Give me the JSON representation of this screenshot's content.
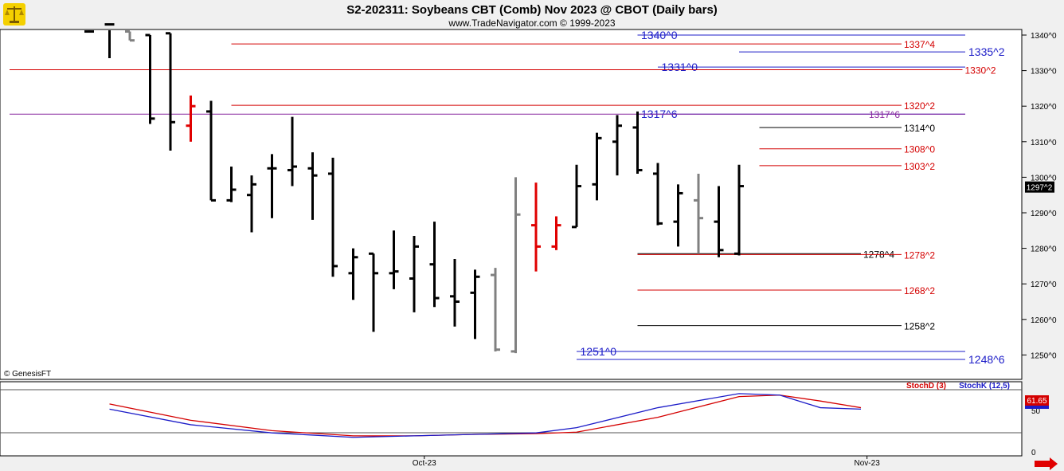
{
  "header": {
    "title": "S2-202311:  Soybeans CBT (Comb) Nov 2023 @ CBOT  (Daily bars)",
    "subtitle": "www.TradeNavigator.com © 1999-2023"
  },
  "copyright": "© GenesisFT",
  "colors": {
    "up_bar": "#000000",
    "inside_bar": "#808080",
    "reversal_bar": "#e00000",
    "red_level": "#d40000",
    "blue_level": "#1c1cc8",
    "black_level": "#000000",
    "stoch_d": "#d40000",
    "stoch_k": "#1c1cc8",
    "background": "#ffffff",
    "frame": "#f0f0f0"
  },
  "chart_data": [
    {
      "type": "bar",
      "subtype": "ohlc",
      "title": "S2-202311:  Soybeans CBT (Comb) Nov 2023 @ CBOT  (Daily bars)",
      "ylim": [
        1245,
        1343
      ],
      "y_ticks": [
        "1340^0",
        "1330^0",
        "1320^0",
        "1310^0",
        "1300^0",
        "1290^0",
        "1280^0",
        "1270^0",
        "1260^0",
        "1250^0"
      ],
      "y_tick_values": [
        1340,
        1330,
        1320,
        1310,
        1300,
        1290,
        1280,
        1270,
        1260,
        1250
      ],
      "x_ticks": [
        "Oct-23",
        "Nov-23"
      ],
      "x_tick_index": [
        16.5,
        38.3
      ],
      "last_price_label": "1297^2",
      "last_price": 1297.25,
      "bars": [
        {
          "o": 1341,
          "h": 1342,
          "l": 1341,
          "c": 1341,
          "k": "up"
        },
        {
          "o": 1343,
          "h": 1343,
          "l": 1333.5,
          "c": 1343,
          "k": "up"
        },
        {
          "o": 1341,
          "h": 1341,
          "l": 1338.5,
          "c": 1338.5,
          "k": "inside"
        },
        {
          "o": 1340,
          "h": 1340,
          "l": 1315,
          "c": 1316.5,
          "k": "up"
        },
        {
          "o": 1340.5,
          "h": 1340.5,
          "l": 1307.5,
          "c": 1315.5,
          "k": "up"
        },
        {
          "o": 1314.5,
          "h": 1323,
          "l": 1310,
          "c": 1320,
          "k": "reversal"
        },
        {
          "o": 1318.5,
          "h": 1321.5,
          "l": 1293.5,
          "c": 1293.5,
          "k": "up"
        },
        {
          "o": 1293.5,
          "h": 1303,
          "l": 1293,
          "c": 1296.5,
          "k": "up"
        },
        {
          "o": 1295,
          "h": 1300.5,
          "l": 1284.5,
          "c": 1298,
          "k": "up"
        },
        {
          "o": 1302.5,
          "h": 1306.5,
          "l": 1288.5,
          "c": 1302.5,
          "k": "up"
        },
        {
          "o": 1302,
          "h": 1317,
          "l": 1297.5,
          "c": 1303,
          "k": "up"
        },
        {
          "o": 1302.5,
          "h": 1307,
          "l": 1288,
          "c": 1300.5,
          "k": "up"
        },
        {
          "o": 1301,
          "h": 1305.5,
          "l": 1272,
          "c": 1275,
          "k": "up"
        },
        {
          "o": 1273,
          "h": 1280,
          "l": 1265.5,
          "c": 1277.5,
          "k": "up"
        },
        {
          "o": 1278.5,
          "h": 1278.5,
          "l": 1256.5,
          "c": 1273,
          "k": "up"
        },
        {
          "o": 1273,
          "h": 1285,
          "l": 1268.5,
          "c": 1273.5,
          "k": "up"
        },
        {
          "o": 1271.5,
          "h": 1283.5,
          "l": 1262,
          "c": 1280.5,
          "k": "up"
        },
        {
          "o": 1275.5,
          "h": 1287.5,
          "l": 1263.5,
          "c": 1266,
          "k": "up"
        },
        {
          "o": 1266.5,
          "h": 1277,
          "l": 1258,
          "c": 1265,
          "k": "up"
        },
        {
          "o": 1267.5,
          "h": 1274,
          "l": 1254.5,
          "c": 1272,
          "k": "up"
        },
        {
          "o": 1272.5,
          "h": 1274.5,
          "l": 1251,
          "c": 1251.5,
          "k": "inside"
        },
        {
          "o": 1251,
          "h": 1300,
          "l": 1250.5,
          "c": 1289.5,
          "k": "inside"
        },
        {
          "o": 1286.5,
          "h": 1298.5,
          "l": 1273.5,
          "c": 1280.5,
          "k": "reversal"
        },
        {
          "o": 1280.5,
          "h": 1289,
          "l": 1279.5,
          "c": 1286.5,
          "k": "reversal"
        },
        {
          "o": 1286,
          "h": 1303.5,
          "l": 1286,
          "c": 1297.5,
          "k": "up"
        },
        {
          "o": 1298,
          "h": 1312.5,
          "l": 1293.5,
          "c": 1311,
          "k": "up"
        },
        {
          "o": 1310,
          "h": 1317.5,
          "l": 1300.5,
          "c": 1314.5,
          "k": "up"
        },
        {
          "o": 1314,
          "h": 1318.5,
          "l": 1301,
          "c": 1302,
          "k": "up"
        },
        {
          "o": 1301,
          "h": 1304,
          "l": 1286.5,
          "c": 1287,
          "k": "up"
        },
        {
          "o": 1287.5,
          "h": 1298,
          "l": 1280.5,
          "c": 1295.5,
          "k": "up"
        },
        {
          "o": 1293.5,
          "h": 1301,
          "l": 1278.5,
          "c": 1288.5,
          "k": "inside"
        },
        {
          "o": 1287.5,
          "h": 1297.5,
          "l": 1277.5,
          "c": 1279.5,
          "k": "up"
        },
        {
          "o": 1278.5,
          "h": 1303.5,
          "l": 1278,
          "c": 1297.5,
          "k": "up"
        }
      ],
      "levels": [
        {
          "label": "1340^0",
          "value": 1340,
          "color": "blue",
          "x0": 27,
          "x1": 48,
          "label_pos": "start"
        },
        {
          "label": "1337^4",
          "value": 1337.5,
          "color": "red",
          "x0": 7,
          "x1": 40,
          "label_pos": "end"
        },
        {
          "label": "1335^2",
          "value": 1335.25,
          "color": "blue",
          "x0": 32,
          "x1": 48,
          "label_pos": "end-far"
        },
        {
          "label": "1331^0",
          "value": 1331,
          "color": "blue",
          "x0": 28,
          "x1": 48,
          "label_pos": "start"
        },
        {
          "label": "1330^2",
          "value": 1330.25,
          "color": "red",
          "x0": -7,
          "x1": 43,
          "label_pos": "end"
        },
        {
          "label": "1320^2",
          "value": 1320.25,
          "color": "red",
          "x0": 7,
          "x1": 40,
          "label_pos": "end"
        },
        {
          "label": "1317^6",
          "value": 1317.75,
          "color": "blue",
          "x0": 27,
          "x1": 48,
          "label_pos": "start"
        },
        {
          "label": "1317^6",
          "value": 1317.75,
          "color": "purple",
          "x0": -7,
          "x1": 48,
          "label_pos": "end-right"
        },
        {
          "label": "1314^0",
          "value": 1314,
          "color": "black",
          "x0": 33,
          "x1": 40,
          "label_pos": "end"
        },
        {
          "label": "1308^0",
          "value": 1308,
          "color": "red",
          "x0": 33,
          "x1": 40,
          "label_pos": "end"
        },
        {
          "label": "1303^2",
          "value": 1303.25,
          "color": "red",
          "x0": 33,
          "x1": 40,
          "label_pos": "end"
        },
        {
          "label": "1278^4",
          "value": 1278.5,
          "color": "black",
          "x0": 27,
          "x1": 38,
          "label_pos": "end"
        },
        {
          "label": "1278^2",
          "value": 1278.25,
          "color": "red",
          "x0": 27,
          "x1": 40,
          "label_pos": "end"
        },
        {
          "label": "1268^2",
          "value": 1268.25,
          "color": "red",
          "x0": 27,
          "x1": 40,
          "label_pos": "end"
        },
        {
          "label": "1258^2",
          "value": 1258.25,
          "color": "black",
          "x0": 27,
          "x1": 40,
          "label_pos": "end"
        },
        {
          "label": "1251^0",
          "value": 1251,
          "color": "blue",
          "x0": 24,
          "x1": 48,
          "label_pos": "start"
        },
        {
          "label": "1248^6",
          "value": 1248.75,
          "color": "blue",
          "x0": 24,
          "x1": 48,
          "label_pos": "end-far"
        }
      ]
    },
    {
      "type": "line",
      "title": "",
      "ylim": [
        0,
        100
      ],
      "y_ticks": [
        "50",
        "0"
      ],
      "legend": [
        "StochD (3)",
        "StochK (12,5)"
      ],
      "legend_placement": "top-right",
      "last_value_label": "61.65",
      "series": [
        {
          "name": "StochD (3)",
          "color": "red",
          "x": [
            1,
            5,
            9,
            13,
            16,
            19,
            22,
            24,
            28,
            32,
            34,
            36,
            38
          ],
          "values": [
            70,
            48,
            34,
            27,
            27,
            29,
            30,
            32,
            52,
            80,
            82,
            74,
            65
          ]
        },
        {
          "name": "StochK (12,5)",
          "color": "blue",
          "x": [
            1,
            5,
            9,
            13,
            16,
            19,
            22,
            24,
            28,
            32,
            34,
            36,
            38
          ],
          "values": [
            63,
            42,
            31,
            25,
            27,
            29,
            31,
            38,
            65,
            84,
            82,
            65,
            63
          ]
        }
      ]
    }
  ]
}
